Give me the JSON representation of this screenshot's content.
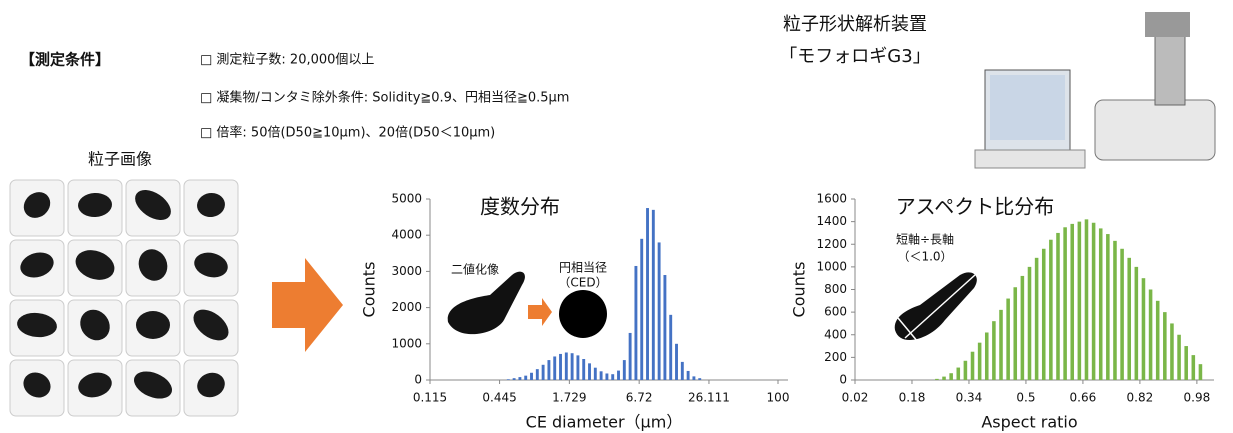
{
  "slide": {
    "conditions_title": "【測定条件】",
    "conditions": [
      "□ 測定粒子数: 20,000個以上",
      "□ 凝集物/コンタミ除外条件: Solidity≧0.9、円相当径≧0.5μm",
      "□ 倍率: 50倍(D50≧10μm)、20倍(D50＜10μm)"
    ],
    "particle_images_title": "粒子画像",
    "instrument_title": "粒子形状解析装置",
    "instrument_name": "「モフォロギG3」"
  },
  "chart_data": [
    {
      "type": "histogram",
      "title": "度数分布",
      "xlabel": "CE diameter（μm）",
      "ylabel": "Counts",
      "xscale": "log",
      "color": "#4472c4",
      "annotations": [
        "二値化像",
        "円相当径",
        "（CED）"
      ],
      "bins": [
        0.115,
        0.1287,
        0.1441,
        0.1613,
        0.1806,
        0.2021,
        0.2263,
        0.2533,
        0.2836,
        0.3174,
        0.3553,
        0.3978,
        0.4453,
        0.4985,
        0.558,
        0.6246,
        0.6992,
        0.7827,
        0.8762,
        0.9808,
        1.098,
        1.229,
        1.376,
        1.54,
        1.724,
        1.93,
        2.16,
        2.418,
        2.707,
        3.03,
        3.392,
        3.797,
        4.251,
        4.758,
        5.327,
        5.963,
        6.675,
        7.472,
        8.365,
        9.364,
        10.48,
        11.73,
        13.13,
        14.7,
        16.46,
        18.42,
        20.62,
        23.09,
        25.84,
        28.93,
        32.38,
        36.25,
        40.58,
        45.43,
        50.85,
        56.93,
        63.73,
        71.34,
        79.86,
        89.39,
        100
      ],
      "values": [
        0,
        0,
        0,
        0,
        0,
        0,
        0,
        0,
        0,
        0,
        0,
        0,
        0,
        20,
        50,
        80,
        120,
        200,
        300,
        420,
        550,
        650,
        720,
        760,
        740,
        680,
        580,
        460,
        340,
        240,
        180,
        160,
        260,
        550,
        1300,
        3150,
        3900,
        4750,
        4700,
        3800,
        2900,
        1800,
        1000,
        500,
        250,
        100,
        50,
        0,
        0,
        0,
        0,
        0,
        0,
        0,
        0,
        0,
        0,
        0,
        0,
        0
      ],
      "xlim": [
        0.115,
        100
      ],
      "xticks": [
        0.115,
        0.445,
        1.729,
        6.72,
        26.111,
        100
      ],
      "ylim": [
        0,
        5000
      ],
      "yticks": [
        0,
        1000,
        2000,
        3000,
        4000,
        5000
      ]
    },
    {
      "type": "histogram",
      "title": "アスペクト比分布",
      "xlabel": "Aspect ratio",
      "ylabel": "Counts",
      "color": "#7ab648",
      "annotations": [
        "短軸÷長軸",
        "（＜1.0）"
      ],
      "bins": [
        0.02,
        0.04,
        0.06,
        0.08,
        0.1,
        0.12,
        0.14,
        0.16,
        0.18,
        0.2,
        0.22,
        0.24,
        0.26,
        0.28,
        0.3,
        0.32,
        0.34,
        0.36,
        0.38,
        0.4,
        0.42,
        0.44,
        0.46,
        0.48,
        0.5,
        0.52,
        0.54,
        0.56,
        0.58,
        0.6,
        0.62,
        0.64,
        0.66,
        0.68,
        0.7,
        0.72,
        0.74,
        0.76,
        0.78,
        0.8,
        0.82,
        0.84,
        0.86,
        0.88,
        0.9,
        0.92,
        0.94,
        0.96,
        0.98,
        1.0
      ],
      "values": [
        0,
        0,
        0,
        0,
        0,
        0,
        0,
        0,
        0,
        0,
        0,
        10,
        30,
        60,
        110,
        170,
        250,
        330,
        420,
        520,
        620,
        720,
        820,
        920,
        1000,
        1080,
        1160,
        1240,
        1300,
        1350,
        1380,
        1400,
        1420,
        1390,
        1340,
        1290,
        1230,
        1160,
        1080,
        1000,
        900,
        800,
        700,
        600,
        500,
        400,
        300,
        220,
        140
      ],
      "xlim": [
        0.02,
        1.0
      ],
      "xticks": [
        0.02,
        0.18,
        0.34,
        0.5,
        0.66,
        0.82,
        0.98
      ],
      "ylim": [
        0,
        1600
      ],
      "yticks": [
        0,
        200,
        400,
        600,
        800,
        1000,
        1200,
        1400,
        1600
      ]
    }
  ]
}
